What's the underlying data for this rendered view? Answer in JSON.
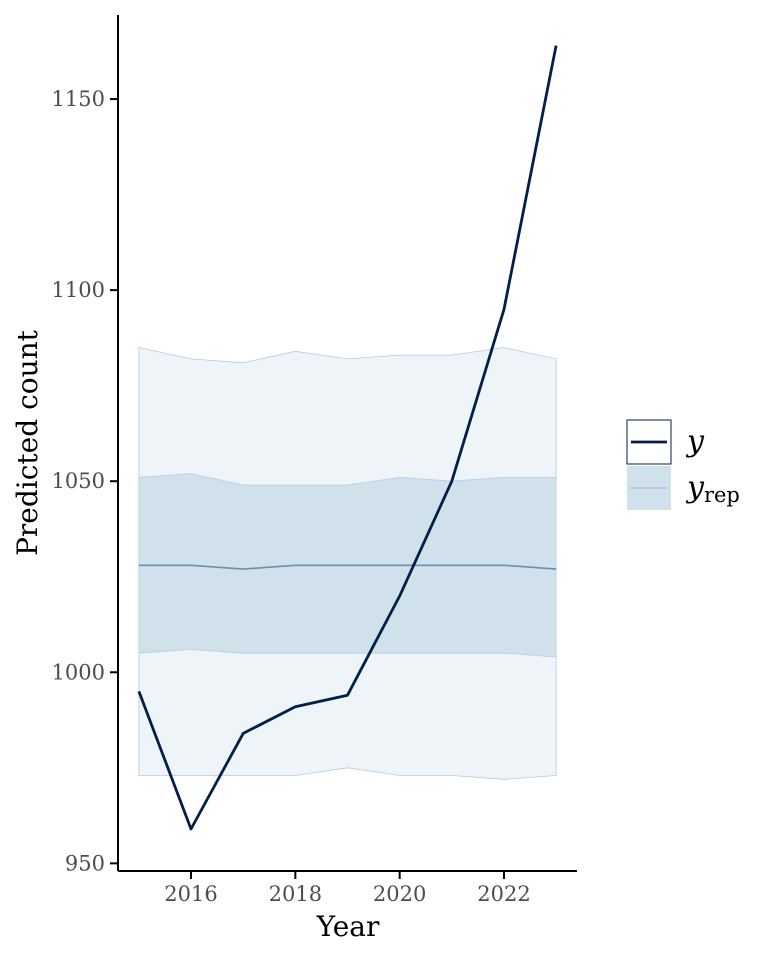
{
  "chart_data": {
    "type": "line",
    "xlabel": "Year",
    "ylabel": "Predicted count",
    "xlim": [
      2014.6,
      2023.4
    ],
    "ylim": [
      948,
      1172
    ],
    "xticks": [
      2016,
      2018,
      2020,
      2022
    ],
    "yticks": [
      950,
      1000,
      1050,
      1100,
      1150
    ],
    "x": [
      2015,
      2016,
      2017,
      2018,
      2019,
      2020,
      2021,
      2022,
      2023
    ],
    "series": [
      {
        "name": "y",
        "values": [
          995,
          959,
          984,
          991,
          994,
          1020,
          1050,
          1095,
          1164
        ]
      },
      {
        "name": "y_rep",
        "median": [
          1028,
          1028,
          1027,
          1028,
          1028,
          1028,
          1028,
          1028,
          1027
        ],
        "inner_lower": [
          1005,
          1006,
          1005,
          1005,
          1005,
          1005,
          1005,
          1005,
          1004
        ],
        "inner_upper": [
          1051,
          1052,
          1049,
          1049,
          1049,
          1051,
          1050,
          1051,
          1051
        ],
        "outer_lower": [
          973,
          973,
          973,
          973,
          975,
          973,
          973,
          972,
          973
        ],
        "outer_upper": [
          1085,
          1082,
          1081,
          1084,
          1082,
          1083,
          1083,
          1085,
          1082
        ]
      }
    ],
    "legend": {
      "position": "right",
      "entries": [
        {
          "label": "y",
          "subscript": ""
        },
        {
          "label": "y",
          "subscript": "rep"
        }
      ]
    },
    "grid": false,
    "colors": {
      "y_line": "#011f4b",
      "median_line": "#6b8fae",
      "inner_band": "#d1e1ec",
      "outer_band": "#eef4f8",
      "band_edge": "#b3cde0",
      "axis": "#000000",
      "tick_text": "#4d4d4d"
    }
  }
}
